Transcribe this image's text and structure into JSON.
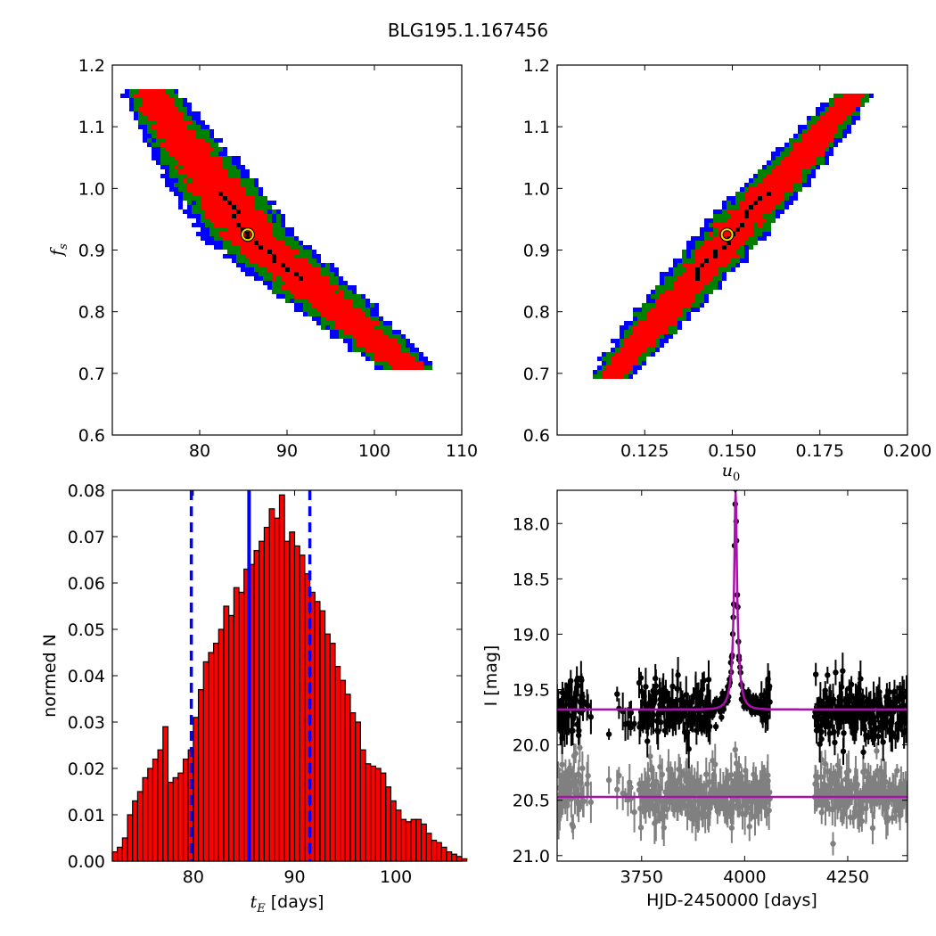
{
  "suptitle": "BLG195.1.167456",
  "chart_data": [
    {
      "type": "heatmap",
      "panel": "top-left",
      "xlabel": "",
      "ylabel": "f_s",
      "xlim": [
        70,
        110
      ],
      "ylim": [
        0.6,
        1.2
      ],
      "xticks": [
        "80",
        "90",
        "100",
        "110"
      ],
      "yticks": [
        "0.6",
        "0.7",
        "0.8",
        "0.9",
        "1.0",
        "1.1",
        "1.2"
      ],
      "colors": {
        "outer": "#0000ff",
        "middle": "#008000",
        "inner": "#ff0000",
        "best": "#000000"
      },
      "ridge": {
        "x": [
          74,
          85.5,
          104
        ],
        "y": [
          1.16,
          0.925,
          0.705
        ]
      },
      "best_fit": {
        "x": 85.5,
        "y": 0.925
      }
    },
    {
      "type": "heatmap",
      "panel": "top-right",
      "xlabel": "u_0",
      "ylabel": "",
      "xlim": [
        0.1,
        0.2
      ],
      "ylim": [
        0.6,
        1.2
      ],
      "xticks": [
        "0.125",
        "0.150",
        "0.175",
        "0.200"
      ],
      "yticks": [
        "0.6",
        "0.7",
        "0.8",
        "0.9",
        "1.0",
        "1.1",
        "1.2"
      ],
      "colors": {
        "outer": "#0000ff",
        "middle": "#008000",
        "inner": "#ff0000",
        "best": "#000000"
      },
      "ridge": {
        "x": [
          0.114,
          0.1485,
          0.184
        ],
        "y": [
          0.695,
          0.925,
          1.155
        ]
      },
      "best_fit": {
        "x": 0.1485,
        "y": 0.925
      }
    },
    {
      "type": "bar",
      "panel": "bottom-left",
      "xlabel": "t_E",
      "xlabel_unit": "[days]",
      "ylabel": "normed N",
      "xlim": [
        72,
        106.5
      ],
      "ylim": [
        0,
        0.08
      ],
      "xticks": [
        "80",
        "90",
        "100"
      ],
      "yticks": [
        "0.00",
        "0.01",
        "0.02",
        "0.03",
        "0.04",
        "0.05",
        "0.06",
        "0.07",
        "0.08"
      ],
      "bin_start": 72,
      "bin_width": 0.5,
      "values": [
        0.002,
        0.003,
        0.005,
        0.01,
        0.013,
        0.015,
        0.018,
        0.02,
        0.022,
        0.024,
        0.029,
        0.017,
        0.018,
        0.019,
        0.022,
        0.024,
        0.031,
        0.037,
        0.043,
        0.045,
        0.047,
        0.05,
        0.055,
        0.053,
        0.059,
        0.058,
        0.063,
        0.064,
        0.067,
        0.069,
        0.072,
        0.076,
        0.074,
        0.079,
        0.069,
        0.071,
        0.068,
        0.066,
        0.062,
        0.058,
        0.056,
        0.054,
        0.049,
        0.047,
        0.042,
        0.039,
        0.036,
        0.032,
        0.03,
        0.024,
        0.021,
        0.0205,
        0.02,
        0.019,
        0.016,
        0.013,
        0.011,
        0.009,
        0.0085,
        0.009,
        0.009,
        0.008,
        0.006,
        0.0045,
        0.004,
        0.003,
        0.002,
        0.0015,
        0.001,
        0.0005
      ],
      "bar_color": "#ff0000",
      "median": 85.5,
      "interval": [
        79.8,
        91.5
      ]
    },
    {
      "type": "scatter",
      "panel": "bottom-right",
      "xlabel": "HJD-2450000 [days]",
      "ylabel": "I [mag]",
      "xlim": [
        3545,
        4395
      ],
      "ylim": [
        21.05,
        17.7
      ],
      "y_inverted": true,
      "xticks": [
        "3750",
        "4000",
        "4250"
      ],
      "yticks": [
        "18.0",
        "18.5",
        "19.0",
        "19.5",
        "20.0",
        "20.5",
        "21.0"
      ],
      "series": [
        {
          "color": "#000000",
          "baseline": 19.68,
          "peak_mag": 17.7,
          "t0": 3978,
          "tE": 85.5,
          "scatter": 0.13
        },
        {
          "color": "#808080",
          "baseline": 20.45,
          "scatter": 0.18
        }
      ],
      "model_color": "#aa11aa",
      "model": {
        "t0": 3978,
        "tE": 85.5,
        "u0": 0.1485,
        "baseline": 19.68,
        "residual_offset": 20.47
      }
    }
  ]
}
